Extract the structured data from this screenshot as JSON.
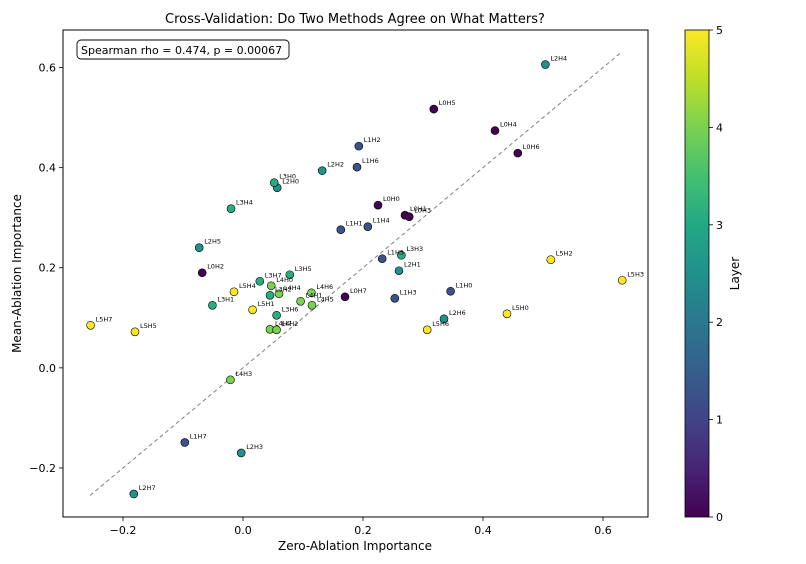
{
  "chart_data": {
    "type": "scatter",
    "title": "Cross-Validation: Do Two Methods Agree on What Matters?",
    "xlabel": "Zero-Ablation Importance",
    "ylabel": "Mean-Ablation Importance",
    "xlim": [
      -0.3,
      0.675
    ],
    "ylim": [
      -0.298,
      0.675
    ],
    "xticks": [
      -0.2,
      0.0,
      0.2,
      0.4,
      0.6
    ],
    "yticks": [
      -0.2,
      0.0,
      0.2,
      0.4,
      0.6
    ],
    "xtick_labels": [
      "−0.2",
      "0.0",
      "0.2",
      "0.4",
      "0.6"
    ],
    "ytick_labels": [
      "−0.2",
      "0.0",
      "0.2",
      "0.4",
      "0.6"
    ],
    "annotation": "Spearman rho = 0.474, p = 0.00067",
    "reference_line": {
      "style": "dashed",
      "color": "#808080",
      "x": [
        -0.255,
        0.632
      ],
      "y": [
        -0.255,
        0.632
      ]
    },
    "colorbar": {
      "label": "Layer",
      "min": 0,
      "max": 5,
      "ticks": [
        "0",
        "1",
        "2",
        "3",
        "4",
        "5"
      ],
      "colormap": "viridis"
    },
    "grid": false,
    "points": [
      {
        "label": "L0H2",
        "x": -0.068,
        "y": 0.19,
        "layer": 0
      },
      {
        "label": "L0H5",
        "x": 0.318,
        "y": 0.517,
        "layer": 0
      },
      {
        "label": "L0H4",
        "x": 0.42,
        "y": 0.474,
        "layer": 0
      },
      {
        "label": "L0H6",
        "x": 0.458,
        "y": 0.429,
        "layer": 0
      },
      {
        "label": "L0H0",
        "x": 0.225,
        "y": 0.325,
        "layer": 0
      },
      {
        "label": "L0H1",
        "x": 0.27,
        "y": 0.305,
        "layer": 0
      },
      {
        "label": "L0H3",
        "x": 0.277,
        "y": 0.302,
        "layer": 0
      },
      {
        "label": "L0H7",
        "x": 0.17,
        "y": 0.142,
        "layer": 0
      },
      {
        "label": "L1H2",
        "x": 0.193,
        "y": 0.443,
        "layer": 1
      },
      {
        "label": "L1H6",
        "x": 0.19,
        "y": 0.401,
        "layer": 1
      },
      {
        "label": "L1H1",
        "x": 0.163,
        "y": 0.276,
        "layer": 1
      },
      {
        "label": "L1H4",
        "x": 0.208,
        "y": 0.282,
        "layer": 1
      },
      {
        "label": "L1H5",
        "x": 0.232,
        "y": 0.218,
        "layer": 1
      },
      {
        "label": "L1H0",
        "x": 0.346,
        "y": 0.153,
        "layer": 1
      },
      {
        "label": "L1H3",
        "x": 0.253,
        "y": 0.139,
        "layer": 1
      },
      {
        "label": "L1H7",
        "x": -0.097,
        "y": -0.149,
        "layer": 1
      },
      {
        "label": "L2H4",
        "x": 0.504,
        "y": 0.606,
        "layer": 2
      },
      {
        "label": "L2H2",
        "x": 0.132,
        "y": 0.394,
        "layer": 2
      },
      {
        "label": "L2H0",
        "x": 0.057,
        "y": 0.36,
        "layer": 2
      },
      {
        "label": "L2H5",
        "x": -0.073,
        "y": 0.24,
        "layer": 2
      },
      {
        "label": "L2H1",
        "x": 0.26,
        "y": 0.194,
        "layer": 2
      },
      {
        "label": "L2H6",
        "x": 0.335,
        "y": 0.098,
        "layer": 2
      },
      {
        "label": "L2H3",
        "x": -0.003,
        "y": -0.17,
        "layer": 2
      },
      {
        "label": "L2H7",
        "x": -0.182,
        "y": -0.252,
        "layer": 2
      },
      {
        "label": "L3H0",
        "x": 0.052,
        "y": 0.37,
        "layer": 3
      },
      {
        "label": "L3H4",
        "x": -0.02,
        "y": 0.318,
        "layer": 3
      },
      {
        "label": "L3H3",
        "x": 0.264,
        "y": 0.225,
        "layer": 3
      },
      {
        "label": "L3H5",
        "x": 0.078,
        "y": 0.186,
        "layer": 3
      },
      {
        "label": "L3H7",
        "x": 0.028,
        "y": 0.173,
        "layer": 3
      },
      {
        "label": "L3H1",
        "x": -0.051,
        "y": 0.125,
        "layer": 3
      },
      {
        "label": "L3H6",
        "x": 0.056,
        "y": 0.105,
        "layer": 3
      },
      {
        "label": "L3H2",
        "x": 0.045,
        "y": 0.145,
        "layer": 3
      },
      {
        "label": "L4H0",
        "x": 0.047,
        "y": 0.164,
        "layer": 4
      },
      {
        "label": "L4H4",
        "x": 0.06,
        "y": 0.148,
        "layer": 4
      },
      {
        "label": "L4H6",
        "x": 0.114,
        "y": 0.15,
        "layer": 4
      },
      {
        "label": "L4H1",
        "x": 0.096,
        "y": 0.133,
        "layer": 4
      },
      {
        "label": "L4H5",
        "x": 0.115,
        "y": 0.125,
        "layer": 4
      },
      {
        "label": "L4H7",
        "x": 0.045,
        "y": 0.077,
        "layer": 4
      },
      {
        "label": "L4H2",
        "x": 0.056,
        "y": 0.076,
        "layer": 4
      },
      {
        "label": "L4H3",
        "x": -0.021,
        "y": -0.024,
        "layer": 4
      },
      {
        "label": "L5H4",
        "x": -0.015,
        "y": 0.152,
        "layer": 5
      },
      {
        "label": "L5H1",
        "x": 0.016,
        "y": 0.116,
        "layer": 5
      },
      {
        "label": "L5H7",
        "x": -0.254,
        "y": 0.085,
        "layer": 5
      },
      {
        "label": "L5H5",
        "x": -0.18,
        "y": 0.072,
        "layer": 5
      },
      {
        "label": "L5H2",
        "x": 0.513,
        "y": 0.216,
        "layer": 5
      },
      {
        "label": "L5H3",
        "x": 0.632,
        "y": 0.175,
        "layer": 5
      },
      {
        "label": "L5H0",
        "x": 0.44,
        "y": 0.108,
        "layer": 5
      },
      {
        "label": "L5H6",
        "x": 0.307,
        "y": 0.076,
        "layer": 5
      }
    ]
  }
}
